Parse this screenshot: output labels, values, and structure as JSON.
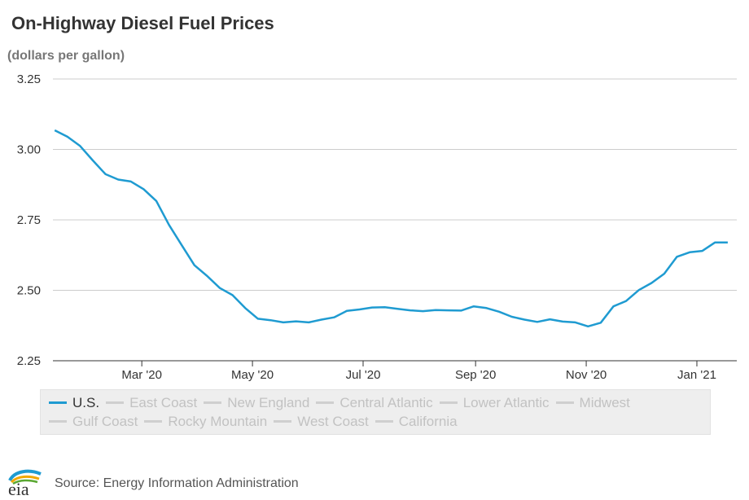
{
  "header": {
    "title": "On-Highway Diesel Fuel Prices",
    "subtitle": "(dollars per gallon)"
  },
  "footer": {
    "logo_text": "eia",
    "source": "Source: Energy Information Administration"
  },
  "legend": {
    "items": [
      {
        "label": "U.S.",
        "active": true
      },
      {
        "label": "East Coast",
        "active": false
      },
      {
        "label": "New England",
        "active": false
      },
      {
        "label": "Central Atlantic",
        "active": false
      },
      {
        "label": "Lower Atlantic",
        "active": false
      },
      {
        "label": "Midwest",
        "active": false
      },
      {
        "label": "Gulf Coast",
        "active": false
      },
      {
        "label": "Rocky Mountain",
        "active": false
      },
      {
        "label": "West Coast",
        "active": false
      },
      {
        "label": "California",
        "active": false
      }
    ]
  },
  "colors": {
    "active_series": "#1f9bd1",
    "inactive_series": "#cfcfcf",
    "grid": "#cccccc"
  },
  "chart_data": {
    "type": "line",
    "title": "On-Highway Diesel Fuel Prices",
    "ylabel": "(dollars per gallon)",
    "ylim": [
      2.25,
      3.25
    ],
    "yticks": [
      "2.25",
      "2.50",
      "2.75",
      "3.00",
      "3.25"
    ],
    "xticks": [
      {
        "label": "Mar '20",
        "date": "2020-03-01"
      },
      {
        "label": "May '20",
        "date": "2020-05-01"
      },
      {
        "label": "Jul '20",
        "date": "2020-07-01"
      },
      {
        "label": "Sep '20",
        "date": "2020-09-01"
      },
      {
        "label": "Nov '20",
        "date": "2020-11-01"
      },
      {
        "label": "Jan '21",
        "date": "2021-01-01"
      }
    ],
    "xlim": [
      "2020-01-12",
      "2021-01-23"
    ],
    "grid": true,
    "legend_position": "bottom",
    "series": [
      {
        "name": "U.S.",
        "x": [
          "2020-01-13",
          "2020-01-20",
          "2020-01-27",
          "2020-02-03",
          "2020-02-10",
          "2020-02-17",
          "2020-02-24",
          "2020-03-02",
          "2020-03-09",
          "2020-03-16",
          "2020-03-23",
          "2020-03-30",
          "2020-04-06",
          "2020-04-13",
          "2020-04-20",
          "2020-04-27",
          "2020-05-04",
          "2020-05-11",
          "2020-05-18",
          "2020-05-25",
          "2020-06-01",
          "2020-06-08",
          "2020-06-15",
          "2020-06-22",
          "2020-06-29",
          "2020-07-06",
          "2020-07-13",
          "2020-07-20",
          "2020-07-27",
          "2020-08-03",
          "2020-08-10",
          "2020-08-17",
          "2020-08-24",
          "2020-08-31",
          "2020-09-07",
          "2020-09-14",
          "2020-09-21",
          "2020-09-28",
          "2020-10-05",
          "2020-10-12",
          "2020-10-19",
          "2020-10-26",
          "2020-11-02",
          "2020-11-09",
          "2020-11-16",
          "2020-11-23",
          "2020-11-30",
          "2020-12-07",
          "2020-12-14",
          "2020-12-21",
          "2020-12-28",
          "2021-01-04",
          "2021-01-11",
          "2021-01-18"
        ],
        "y": [
          3.068,
          3.045,
          3.012,
          2.961,
          2.912,
          2.893,
          2.886,
          2.859,
          2.817,
          2.732,
          2.66,
          2.589,
          2.551,
          2.508,
          2.483,
          2.437,
          2.399,
          2.394,
          2.386,
          2.39,
          2.386,
          2.396,
          2.404,
          2.427,
          2.432,
          2.439,
          2.44,
          2.434,
          2.429,
          2.426,
          2.43,
          2.429,
          2.428,
          2.443,
          2.437,
          2.424,
          2.406,
          2.396,
          2.388,
          2.397,
          2.389,
          2.386,
          2.372,
          2.385,
          2.443,
          2.462,
          2.501,
          2.526,
          2.559,
          2.619,
          2.635,
          2.64,
          2.67,
          2.67
        ]
      }
    ]
  }
}
